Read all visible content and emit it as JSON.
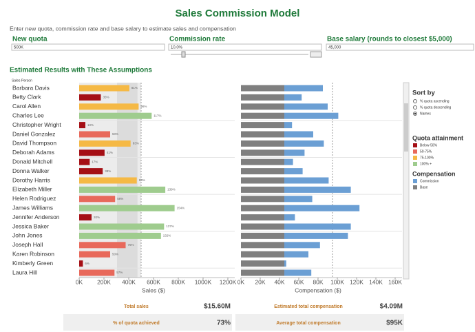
{
  "title": "Sales Commission Model",
  "subtitle": "Enter new quota, commission rate and base salary to estimate sales and compensation",
  "controls": [
    {
      "label": "New quota",
      "value": "500K"
    },
    {
      "label": "Commission rate",
      "value": "10.0%"
    },
    {
      "label": "Base salary (rounds to closest $5,000)",
      "value": "45,000"
    }
  ],
  "section_title": "Estimated Results with These Assumptions",
  "row_header": "Sales Person",
  "chart_data": [
    {
      "type": "bar",
      "orientation": "horizontal",
      "categories": [
        "Barbara Davis",
        "Betty Clark",
        "Carol Allen",
        "Charles Lee",
        "Christopher Wright",
        "Daniel Gonzalez",
        "David Thompson",
        "Deborah Adams",
        "Donald Mitchell",
        "Donna Walker",
        "Dorothy Harris",
        "Elizabeth Miller",
        "Helen Rodriguez",
        "James Williams",
        "Jennifer Anderson",
        "Jessica Baker",
        "John Jones",
        "Joseph Hall",
        "Karen Robinson",
        "Kimberly Green",
        "Laura Hill"
      ],
      "values": [
        405000,
        175000,
        480000,
        585000,
        50000,
        250000,
        415000,
        205000,
        85000,
        190000,
        465000,
        695000,
        290000,
        770000,
        100000,
        685000,
        660000,
        375000,
        250000,
        30000,
        285000
      ],
      "value_labels": [
        "81%",
        "35%",
        "96%",
        "117%",
        "10%",
        "50%",
        "83%",
        "41%",
        "17%",
        "38%",
        "93%",
        "139%",
        "58%",
        "154%",
        "20%",
        "137%",
        "132%",
        "75%",
        "50%",
        "6%",
        "57%"
      ],
      "colors": [
        "#f5b945",
        "#a50f15",
        "#f5b945",
        "#9fcc8e",
        "#a50f15",
        "#e8695b",
        "#f5b945",
        "#a50f15",
        "#a50f15",
        "#a50f15",
        "#f5b945",
        "#9fcc8e",
        "#e8695b",
        "#9fcc8e",
        "#a50f15",
        "#9fcc8e",
        "#9fcc8e",
        "#e8695b",
        "#e8695b",
        "#a50f15",
        "#e8695b"
      ],
      "reference_line": 500000,
      "xlim": [
        0,
        1200000
      ],
      "xticks": [
        {
          "value": 0,
          "label": "0K"
        },
        {
          "value": 200000,
          "label": "200K"
        },
        {
          "value": 400000,
          "label": "400K"
        },
        {
          "value": 600000,
          "label": "600K"
        },
        {
          "value": 800000,
          "label": "800K"
        },
        {
          "value": 1000000,
          "label": "1000K"
        },
        {
          "value": 1200000,
          "label": "1200K"
        }
      ],
      "xlabel": "Sales ($)"
    },
    {
      "type": "stacked_bar",
      "orientation": "horizontal",
      "series": [
        {
          "name": "Base",
          "color": "#7f7f7f",
          "values": [
            45000,
            45000,
            45000,
            45000,
            45000,
            45000,
            45000,
            45000,
            45000,
            45000,
            45000,
            45000,
            45000,
            45000,
            45000,
            45000,
            45000,
            45000,
            45000,
            45000,
            45000
          ]
        },
        {
          "name": "Commission",
          "color": "#6b9fd4",
          "values": [
            40000,
            18000,
            45000,
            56000,
            8000,
            30000,
            41000,
            21000,
            9000,
            19000,
            46000,
            69000,
            29000,
            78000,
            11000,
            69000,
            66000,
            37000,
            25000,
            2000,
            28000
          ]
        }
      ],
      "reference_line": 95000,
      "xlim": [
        0,
        160000
      ],
      "xticks": [
        {
          "value": 0,
          "label": "0K"
        },
        {
          "value": 20000,
          "label": "20K"
        },
        {
          "value": 40000,
          "label": "40K"
        },
        {
          "value": 60000,
          "label": "60K"
        },
        {
          "value": 80000,
          "label": "80K"
        },
        {
          "value": 100000,
          "label": "100K"
        },
        {
          "value": 120000,
          "label": "120K"
        },
        {
          "value": 140000,
          "label": "140K"
        },
        {
          "value": 160000,
          "label": "160K"
        }
      ],
      "xlabel": "Compensation ($)",
      "legend_title": "Compensation"
    }
  ],
  "sort_by": {
    "title": "Sort by",
    "options": [
      "% quota ascending",
      "% quota descending",
      "Names"
    ],
    "selected": 2
  },
  "quota_legend": {
    "title": "Quota attainment",
    "items": [
      {
        "label": "Below 50%",
        "color": "#a50f15"
      },
      {
        "label": "50-75%",
        "color": "#e8695b"
      },
      {
        "label": "75-100%",
        "color": "#f5b945"
      },
      {
        "label": "100% +",
        "color": "#9fcc8e"
      }
    ]
  },
  "summary": [
    {
      "label": "Total sales",
      "value": "$15.60M"
    },
    {
      "label": "Estimated total compensation",
      "value": "$4.09M"
    },
    {
      "label": "% of quota achieved",
      "value": "73%"
    },
    {
      "label": "Average total compensation",
      "value": "$95K"
    }
  ]
}
